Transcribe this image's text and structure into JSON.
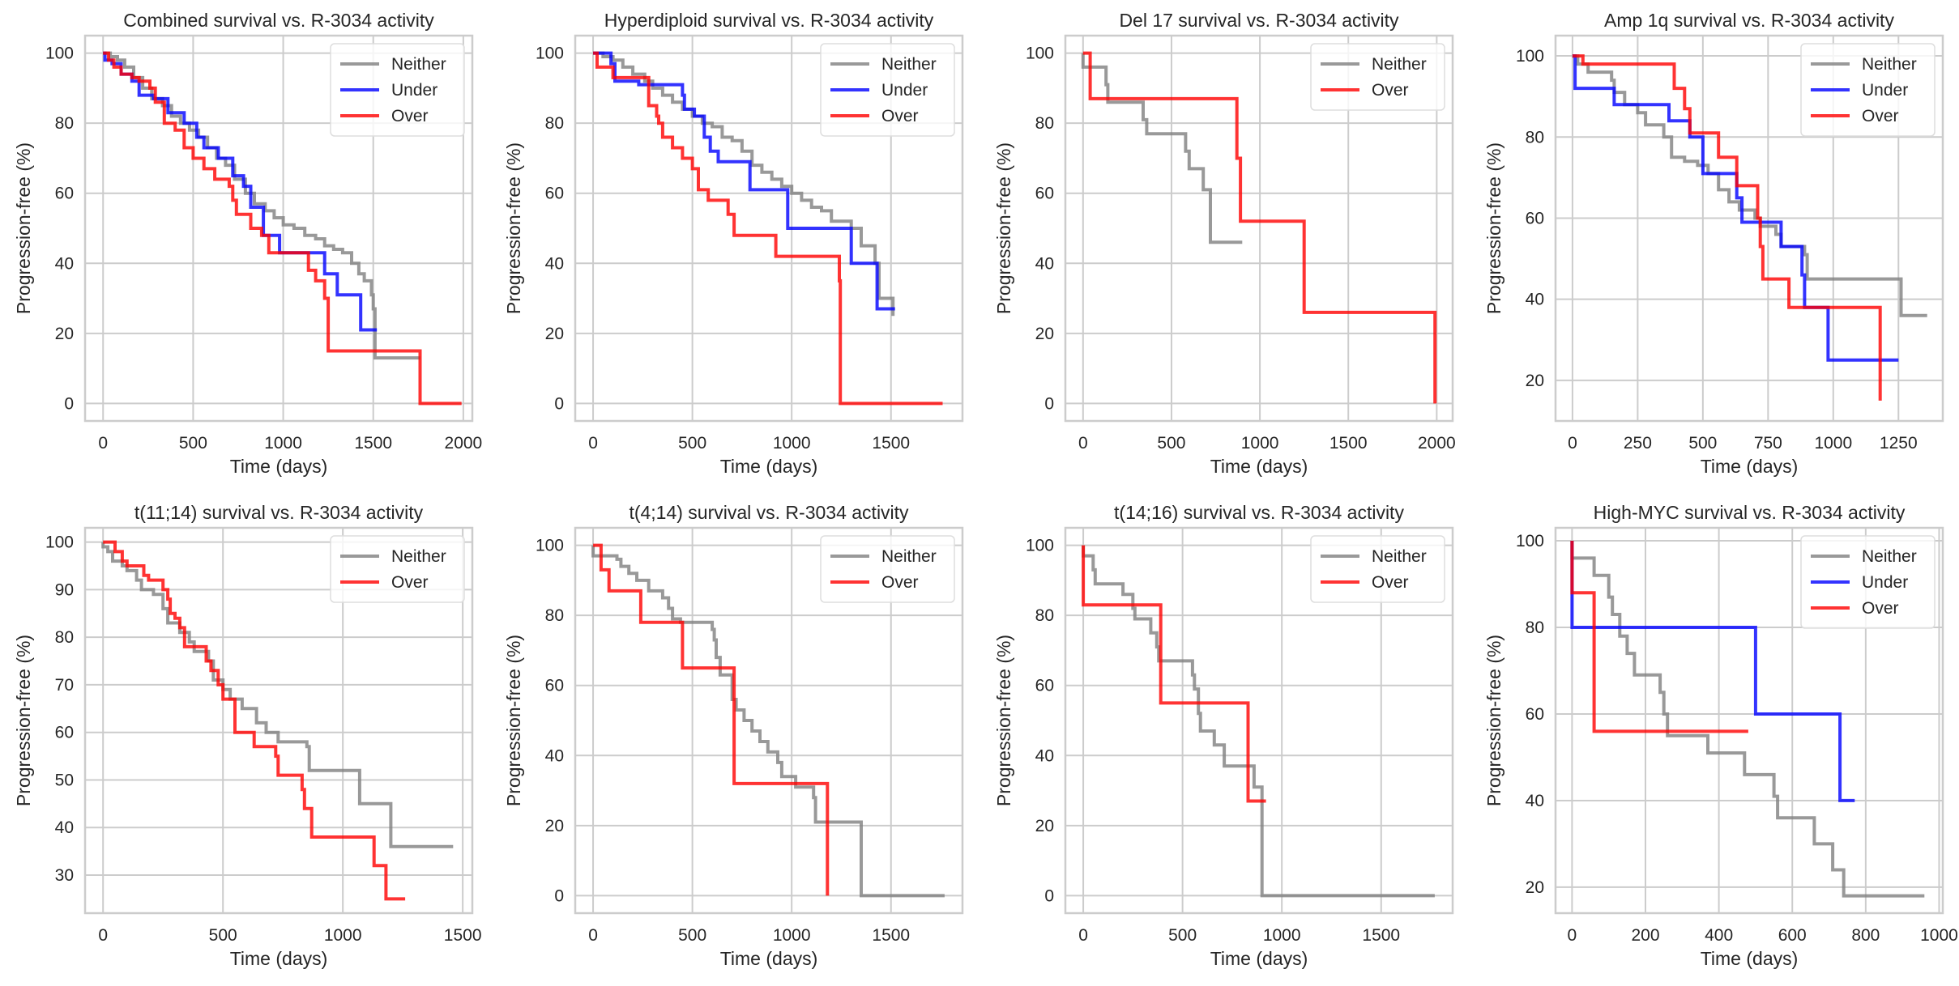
{
  "colors": {
    "Neither": "#808080",
    "Under": "#0000ff",
    "Over": "#ff0000"
  },
  "chart_data": [
    {
      "type": "line",
      "step": true,
      "title": "Combined survival vs. R-3034 activity",
      "xlabel": "Time (days)",
      "ylabel": "Progression-free (%)",
      "xlim": [
        -100,
        2050
      ],
      "ylim": [
        -5,
        105
      ],
      "xticks": [
        0,
        500,
        1000,
        1500,
        2000
      ],
      "yticks": [
        0,
        20,
        40,
        60,
        80,
        100
      ],
      "grid": true,
      "legend": "top-right",
      "series": [
        {
          "name": "Neither",
          "x": [
            0,
            40,
            80,
            120,
            170,
            220,
            270,
            330,
            380,
            430,
            480,
            530,
            580,
            630,
            680,
            730,
            790,
            840,
            900,
            950,
            1000,
            1060,
            1120,
            1180,
            1230,
            1280,
            1330,
            1380,
            1420,
            1450,
            1490,
            1500,
            1510,
            1760
          ],
          "y": [
            100,
            99,
            98,
            96,
            93,
            90,
            87,
            85,
            82,
            80,
            78,
            76,
            73,
            70,
            68,
            64,
            60,
            57,
            55,
            53,
            51,
            50,
            48,
            47,
            45,
            44,
            43,
            40,
            37,
            35,
            31,
            27,
            13,
            13
          ]
        },
        {
          "name": "Under",
          "x": [
            0,
            10,
            50,
            100,
            160,
            200,
            280,
            360,
            450,
            520,
            560,
            640,
            720,
            780,
            820,
            890,
            980,
            1230,
            1300,
            1430,
            1520
          ],
          "y": [
            100,
            98,
            97,
            94,
            92,
            88,
            87,
            83,
            80,
            76,
            73,
            70,
            65,
            62,
            56,
            48,
            43,
            37,
            31,
            21,
            21
          ]
        },
        {
          "name": "Over",
          "x": [
            0,
            30,
            60,
            100,
            160,
            200,
            260,
            290,
            340,
            400,
            450,
            500,
            560,
            620,
            700,
            720,
            740,
            820,
            880,
            920,
            1140,
            1180,
            1230,
            1250,
            1760,
            1990
          ],
          "y": [
            100,
            98,
            96,
            94,
            93,
            92,
            90,
            86,
            80,
            78,
            73,
            70,
            67,
            64,
            62,
            58,
            54,
            50,
            48,
            43,
            38,
            35,
            30,
            15,
            0,
            0
          ]
        }
      ]
    },
    {
      "type": "line",
      "step": true,
      "title": "Hyperdiploid survival vs. R-3034 activity",
      "xlabel": "Time (days)",
      "ylabel": "Progression-free (%)",
      "xlim": [
        -90,
        1860
      ],
      "ylim": [
        -5,
        105
      ],
      "xticks": [
        0,
        500,
        1000,
        1500
      ],
      "yticks": [
        0,
        20,
        40,
        60,
        80,
        100
      ],
      "grid": true,
      "legend": "top-right",
      "series": [
        {
          "name": "Neither",
          "x": [
            0,
            50,
            100,
            150,
            200,
            260,
            300,
            350,
            400,
            450,
            500,
            550,
            600,
            650,
            700,
            750,
            800,
            850,
            900,
            950,
            1000,
            1050,
            1100,
            1150,
            1200,
            1300,
            1350,
            1420,
            1440,
            1510
          ],
          "y": [
            100,
            99,
            98,
            96,
            94,
            92,
            90,
            88,
            86,
            84,
            82,
            80,
            79,
            76,
            75,
            72,
            68,
            66,
            64,
            62,
            60,
            58,
            56,
            55,
            52,
            50,
            45,
            40,
            30,
            25
          ]
        },
        {
          "name": "Under",
          "x": [
            0,
            90,
            110,
            230,
            450,
            460,
            510,
            560,
            590,
            630,
            790,
            980,
            1300,
            1430,
            1520
          ],
          "y": [
            100,
            97,
            92,
            91,
            88,
            84,
            82,
            76,
            72,
            69,
            61,
            50,
            40,
            27,
            27
          ]
        },
        {
          "name": "Over",
          "x": [
            0,
            20,
            100,
            270,
            280,
            320,
            330,
            350,
            400,
            450,
            500,
            530,
            580,
            680,
            710,
            920,
            1240,
            1245,
            1760
          ],
          "y": [
            100,
            96,
            93,
            93,
            85,
            82,
            80,
            76,
            73,
            70,
            67,
            61,
            58,
            54,
            48,
            42,
            35,
            0,
            0
          ]
        }
      ]
    },
    {
      "type": "line",
      "step": true,
      "title": "Del 17 survival vs. R-3034 activity",
      "xlabel": "Time (days)",
      "ylabel": "Progression-free (%)",
      "xlim": [
        -100,
        2090
      ],
      "ylim": [
        -5,
        105
      ],
      "xticks": [
        0,
        500,
        1000,
        1500,
        2000
      ],
      "yticks": [
        0,
        20,
        40,
        60,
        80,
        100
      ],
      "grid": true,
      "legend": "top-right",
      "series": [
        {
          "name": "Neither",
          "x": [
            0,
            130,
            140,
            340,
            360,
            580,
            600,
            680,
            720,
            900
          ],
          "y": [
            96,
            91,
            86,
            81,
            77,
            72,
            67,
            61,
            46,
            46
          ]
        },
        {
          "name": "Over",
          "x": [
            0,
            40,
            870,
            890,
            1250,
            1990
          ],
          "y": [
            100,
            87,
            70,
            52,
            26,
            0
          ]
        }
      ]
    },
    {
      "type": "line",
      "step": true,
      "title": "Amp 1q survival vs. R-3034 activity",
      "xlabel": "Time (days)",
      "ylabel": "Progression-free (%)",
      "xlim": [
        -65,
        1420
      ],
      "ylim": [
        10,
        105
      ],
      "xticks": [
        0,
        250,
        500,
        750,
        1000,
        1250
      ],
      "yticks": [
        20,
        40,
        60,
        80,
        100
      ],
      "grid": true,
      "legend": "top-right",
      "series": [
        {
          "name": "Neither",
          "x": [
            0,
            20,
            60,
            150,
            160,
            200,
            250,
            280,
            350,
            380,
            430,
            480,
            520,
            560,
            600,
            640,
            700,
            720,
            780,
            800,
            890,
            900,
            1260,
            1360
          ],
          "y": [
            100,
            98,
            96,
            94,
            91,
            88,
            86,
            83,
            80,
            75,
            74,
            73,
            71,
            67,
            64,
            62,
            60,
            58,
            56,
            53,
            51,
            45,
            36,
            36
          ]
        },
        {
          "name": "Under",
          "x": [
            0,
            10,
            160,
            370,
            450,
            500,
            630,
            650,
            800,
            880,
            890,
            980,
            1250
          ],
          "y": [
            100,
            92,
            88,
            84,
            80,
            71,
            65,
            59,
            53,
            46,
            38,
            25,
            25
          ]
        },
        {
          "name": "Over",
          "x": [
            0,
            40,
            390,
            430,
            450,
            560,
            630,
            710,
            720,
            730,
            830,
            1180
          ],
          "y": [
            100,
            98,
            92,
            87,
            81,
            75,
            68,
            60,
            53,
            45,
            38,
            15
          ]
        }
      ]
    },
    {
      "type": "line",
      "step": true,
      "title": "t(11;14) survival vs. R-3034 activity",
      "xlabel": "Time (days)",
      "ylabel": "Progression-free (%)",
      "xlim": [
        -75,
        1540
      ],
      "ylim": [
        22,
        103
      ],
      "xticks": [
        0,
        500,
        1000,
        1500
      ],
      "yticks": [
        30,
        40,
        50,
        60,
        70,
        80,
        90,
        100
      ],
      "grid": true,
      "legend": "top-right",
      "series": [
        {
          "name": "Neither",
          "x": [
            0,
            20,
            40,
            80,
            100,
            140,
            160,
            210,
            250,
            270,
            320,
            360,
            380,
            440,
            460,
            500,
            530,
            580,
            640,
            680,
            730,
            850,
            860,
            1070,
            1200,
            1460
          ],
          "y": [
            99,
            98,
            96,
            95,
            94,
            92,
            90,
            89,
            86,
            83,
            81,
            79,
            77,
            75,
            71,
            69,
            67,
            65,
            62,
            60,
            58,
            57,
            52,
            45,
            36,
            36
          ]
        },
        {
          "name": "Over",
          "x": [
            0,
            50,
            80,
            100,
            170,
            190,
            250,
            270,
            280,
            300,
            320,
            340,
            430,
            450,
            480,
            500,
            550,
            630,
            720,
            730,
            830,
            840,
            870,
            1130,
            1180,
            1260
          ],
          "y": [
            100,
            98,
            96,
            95,
            93,
            92,
            90,
            88,
            85,
            84,
            82,
            78,
            75,
            73,
            70,
            67,
            60,
            57,
            55,
            51,
            48,
            44,
            38,
            32,
            25,
            25
          ]
        }
      ]
    },
    {
      "type": "line",
      "step": true,
      "title": "t(4;14) survival vs. R-3034 activity",
      "xlabel": "Time (days)",
      "ylabel": "Progression-free (%)",
      "xlim": [
        -90,
        1860
      ],
      "ylim": [
        -5,
        105
      ],
      "xticks": [
        0,
        500,
        1000,
        1500
      ],
      "yticks": [
        0,
        20,
        40,
        60,
        80,
        100
      ],
      "grid": true,
      "legend": "top-right",
      "series": [
        {
          "name": "Neither",
          "x": [
            0,
            120,
            140,
            180,
            220,
            280,
            350,
            380,
            400,
            440,
            600,
            610,
            620,
            640,
            700,
            720,
            760,
            800,
            840,
            880,
            930,
            950,
            1020,
            1110,
            1120,
            1350,
            1770
          ],
          "y": [
            97,
            96,
            94,
            92,
            90,
            87,
            85,
            82,
            79,
            78,
            76,
            73,
            68,
            63,
            56,
            53,
            50,
            47,
            44,
            41,
            38,
            34,
            31,
            28,
            21,
            0,
            0
          ]
        },
        {
          "name": "Over",
          "x": [
            0,
            40,
            80,
            240,
            450,
            710,
            1180
          ],
          "y": [
            100,
            93,
            87,
            78,
            65,
            32,
            0
          ]
        }
      ]
    },
    {
      "type": "line",
      "step": true,
      "title": "t(14;16) survival vs. R-3034 activity",
      "xlabel": "Time (days)",
      "ylabel": "Progression-free (%)",
      "xlim": [
        -90,
        1860
      ],
      "ylim": [
        -5,
        105
      ],
      "xticks": [
        0,
        500,
        1000,
        1500
      ],
      "yticks": [
        0,
        20,
        40,
        60,
        80,
        100
      ],
      "grid": true,
      "legend": "top-right",
      "series": [
        {
          "name": "Neither",
          "x": [
            0,
            50,
            60,
            200,
            250,
            260,
            340,
            370,
            380,
            550,
            560,
            580,
            590,
            660,
            710,
            860,
            900,
            1770
          ],
          "y": [
            97,
            93,
            89,
            86,
            82,
            79,
            75,
            71,
            67,
            63,
            59,
            52,
            47,
            43,
            37,
            31,
            0,
            0
          ]
        },
        {
          "name": "Over",
          "x": [
            0,
            390,
            830,
            920
          ],
          "y": [
            83,
            55,
            27,
            27
          ]
        }
      ]
    },
    {
      "type": "line",
      "step": true,
      "title": "High-MYC survival vs. R-3034 activity",
      "xlabel": "Time (days)",
      "ylabel": "Progression-free (%)",
      "xlim": [
        -45,
        1010
      ],
      "ylim": [
        14,
        103
      ],
      "xticks": [
        0,
        200,
        400,
        600,
        800,
        1000
      ],
      "yticks": [
        20,
        40,
        60,
        80,
        100
      ],
      "grid": true,
      "legend": "top-right",
      "series": [
        {
          "name": "Neither",
          "x": [
            0,
            60,
            100,
            110,
            130,
            150,
            170,
            240,
            250,
            260,
            370,
            470,
            550,
            560,
            660,
            710,
            740,
            960
          ],
          "y": [
            96,
            92,
            87,
            83,
            78,
            74,
            69,
            65,
            60,
            55,
            51,
            46,
            41,
            36,
            30,
            24,
            18,
            18
          ]
        },
        {
          "name": "Under",
          "x": [
            0,
            500,
            730,
            770
          ],
          "y": [
            80,
            60,
            40,
            40
          ]
        },
        {
          "name": "Over",
          "x": [
            0,
            60,
            480
          ],
          "y": [
            88,
            56,
            56
          ]
        }
      ]
    }
  ]
}
